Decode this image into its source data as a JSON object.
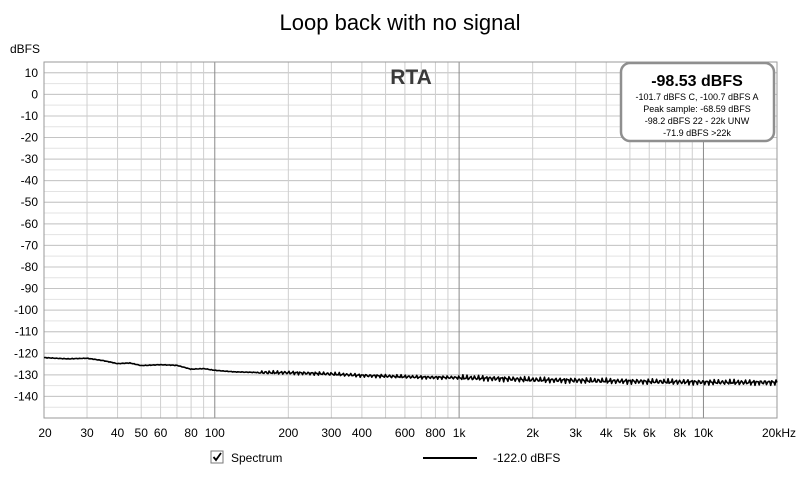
{
  "chart_data": {
    "type": "line",
    "title": "Loop back with no signal",
    "ylabel": "dBFS",
    "xlabel": "",
    "x_scale": "log",
    "xlim": [
      20,
      20000
    ],
    "ylim": [
      -150,
      15
    ],
    "grid": true,
    "watermark": "RTA",
    "x_ticks": [
      {
        "v": 20,
        "label": "20"
      },
      {
        "v": 30,
        "label": "30"
      },
      {
        "v": 40,
        "label": "40"
      },
      {
        "v": 50,
        "label": "50"
      },
      {
        "v": 60,
        "label": "60"
      },
      {
        "v": 80,
        "label": "80"
      },
      {
        "v": 100,
        "label": "100"
      },
      {
        "v": 200,
        "label": "200"
      },
      {
        "v": 300,
        "label": "300"
      },
      {
        "v": 400,
        "label": "400"
      },
      {
        "v": 600,
        "label": "600"
      },
      {
        "v": 800,
        "label": "800"
      },
      {
        "v": 1000,
        "label": "1k"
      },
      {
        "v": 2000,
        "label": "2k"
      },
      {
        "v": 3000,
        "label": "3k"
      },
      {
        "v": 4000,
        "label": "4k"
      },
      {
        "v": 5000,
        "label": "5k"
      },
      {
        "v": 6000,
        "label": "6k"
      },
      {
        "v": 8000,
        "label": "8k"
      },
      {
        "v": 10000,
        "label": "10k"
      },
      {
        "v": 20000,
        "label": "20kHz"
      }
    ],
    "y_ticks": [
      10,
      0,
      -10,
      -20,
      -30,
      -40,
      -50,
      -60,
      -70,
      -80,
      -90,
      -100,
      -110,
      -120,
      -130,
      -140
    ],
    "series": [
      {
        "name": "-122.0 dBFS",
        "color": "#000000",
        "x": [
          20,
          25,
          30,
          35,
          40,
          45,
          50,
          60,
          70,
          80,
          90,
          100,
          120,
          150,
          200,
          250,
          300,
          400,
          500,
          700,
          1000,
          1500,
          2000,
          3000,
          5000,
          7000,
          10000,
          15000,
          20000
        ],
        "y": [
          -122.0,
          -122.6,
          -122.3,
          -123.4,
          -124.8,
          -124.5,
          -125.7,
          -125.3,
          -125.6,
          -127.4,
          -127.1,
          -127.9,
          -128.6,
          -128.9,
          -129.0,
          -129.3,
          -129.6,
          -130.3,
          -130.6,
          -131.1,
          -131.3,
          -131.8,
          -132.3,
          -132.6,
          -133.0,
          -133.2,
          -133.4,
          -133.5,
          -133.5
        ]
      }
    ],
    "info_box": {
      "headline": "-98.53 dBFS",
      "lines": [
        "-101.7 dBFS C, -100.7 dBFS A",
        "Peak sample: -68.59 dBFS",
        "-98.2 dBFS 22 - 22k UNW",
        "-71.9 dBFS >22k"
      ]
    },
    "legend": {
      "checkbox_label": "Spectrum",
      "checkbox_checked": true,
      "series_label": "-122.0 dBFS"
    }
  }
}
